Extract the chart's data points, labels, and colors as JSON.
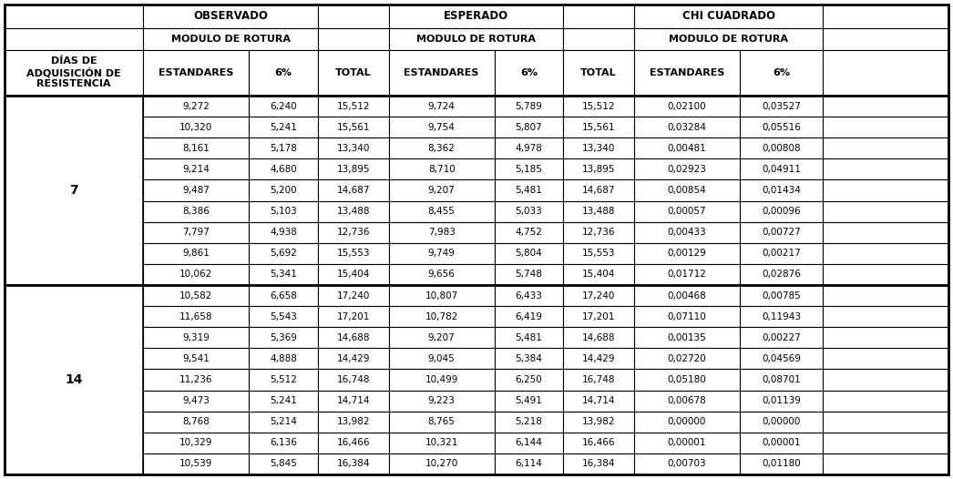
{
  "rows": [
    [
      "9,272",
      "6,240",
      "15,512",
      "9,724",
      "5,789",
      "15,512",
      "0,02100",
      "0,03527"
    ],
    [
      "10,320",
      "5,241",
      "15,561",
      "9,754",
      "5,807",
      "15,561",
      "0,03284",
      "0,05516"
    ],
    [
      "8,161",
      "5,178",
      "13,340",
      "8,362",
      "4,978",
      "13,340",
      "0,00481",
      "0,00808"
    ],
    [
      "9,214",
      "4,680",
      "13,895",
      "8,710",
      "5,185",
      "13,895",
      "0,02923",
      "0,04911"
    ],
    [
      "9,487",
      "5,200",
      "14,687",
      "9,207",
      "5,481",
      "14,687",
      "0,00854",
      "0,01434"
    ],
    [
      "8,386",
      "5,103",
      "13,488",
      "8,455",
      "5,033",
      "13,488",
      "0,00057",
      "0,00096"
    ],
    [
      "7,797",
      "4,938",
      "12,736",
      "7,983",
      "4,752",
      "12,736",
      "0,00433",
      "0,00727"
    ],
    [
      "9,861",
      "5,692",
      "15,553",
      "9,749",
      "5,804",
      "15,553",
      "0,00129",
      "0,00217"
    ],
    [
      "10,062",
      "5,341",
      "15,404",
      "9,656",
      "5,748",
      "15,404",
      "0,01712",
      "0,02876"
    ],
    [
      "10,582",
      "6,658",
      "17,240",
      "10,807",
      "6,433",
      "17,240",
      "0,00468",
      "0,00785"
    ],
    [
      "11,658",
      "5,543",
      "17,201",
      "10,782",
      "6,419",
      "17,201",
      "0,07110",
      "0,11943"
    ],
    [
      "9,319",
      "5,369",
      "14,688",
      "9,207",
      "5,481",
      "14,688",
      "0,00135",
      "0,00227"
    ],
    [
      "9,541",
      "4,888",
      "14,429",
      "9,045",
      "5,384",
      "14,429",
      "0,02720",
      "0,04569"
    ],
    [
      "11,236",
      "5,512",
      "16,748",
      "10,499",
      "6,250",
      "16,748",
      "0,05180",
      "0,08701"
    ],
    [
      "9,473",
      "5,241",
      "14,714",
      "9,223",
      "5,491",
      "14,714",
      "0,00678",
      "0,01139"
    ],
    [
      "8,768",
      "5,214",
      "13,982",
      "8,765",
      "5,218",
      "13,982",
      "0,00000",
      "0,00000"
    ],
    [
      "10,329",
      "6,136",
      "16,466",
      "10,321",
      "6,144",
      "16,466",
      "0,00001",
      "0,00001"
    ],
    [
      "10,539",
      "5,845",
      "16,384",
      "10,270",
      "6,114",
      "16,384",
      "0,00703",
      "0,01180"
    ]
  ],
  "section_7_rows": [
    0,
    8
  ],
  "section_14_rows": [
    9,
    17
  ],
  "col_labels": [
    "ESTANDARES",
    "6%",
    "TOTAL",
    "ESTANDARES",
    "6%",
    "TOTAL",
    "ESTANDARES",
    "6%"
  ],
  "dias_label": "DÍAS DE\nADQUISICIÓN DE\nRESISTENCIA",
  "bg_color": "#ffffff",
  "text_color": "#000000",
  "figwidth": 10.46,
  "figheight": 5.26
}
